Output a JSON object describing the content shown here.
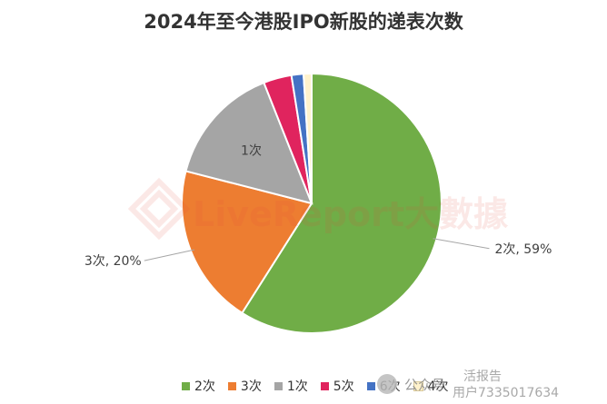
{
  "chart_data": {
    "type": "pie",
    "title": "2024年至今港股IPO新股的递表次数",
    "slices": [
      {
        "label": "2次",
        "value": 59,
        "color": "#70ad47",
        "data_label": "2次, 59%"
      },
      {
        "label": "3次",
        "value": 20,
        "color": "#ed7d31",
        "data_label": "3次, 20%"
      },
      {
        "label": "1次",
        "value": 15,
        "color": "#a5a5a5",
        "data_label": "1次"
      },
      {
        "label": "5次",
        "value": 3.5,
        "color": "#e0245e",
        "data_label": ""
      },
      {
        "label": "6次",
        "value": 1.5,
        "color": "#4472c4",
        "data_label": ""
      },
      {
        "label": "4次",
        "value": 1,
        "color": "#fff2cc",
        "data_label": ""
      }
    ],
    "legend": [
      "2次",
      "3次",
      "1次",
      "5次",
      "6次",
      "4次"
    ],
    "legend_position": "bottom"
  },
  "watermark": {
    "brand": "LiveReport大數據",
    "footer_left": "公众号",
    "footer_right_top": "活报告",
    "footer_right_bottom": "用户7335017634"
  }
}
